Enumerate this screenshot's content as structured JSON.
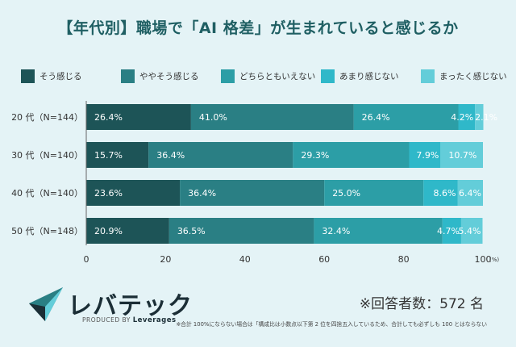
{
  "title": "【年代別】職場で「AI 格差」が生まれていると感じるか",
  "chart_data": {
    "type": "bar",
    "orientation": "horizontal",
    "stacked": true,
    "categories": [
      "20 代（N=144）",
      "30 代（N=140）",
      "40 代（N=140）",
      "50 代（N=148）"
    ],
    "series": [
      {
        "name": "そう感じる",
        "color": "#1d5457",
        "values": [
          26.4,
          15.7,
          23.6,
          20.9
        ]
      },
      {
        "name": "ややそう感じる",
        "color": "#2a7f84",
        "values": [
          41.0,
          36.4,
          36.4,
          36.5
        ]
      },
      {
        "name": "どちらともいえない",
        "color": "#2c9ea6",
        "values": [
          26.4,
          29.3,
          25.0,
          32.4
        ]
      },
      {
        "name": "あまり感じない",
        "color": "#2fb8c9",
        "values": [
          4.2,
          7.9,
          8.6,
          4.7
        ]
      },
      {
        "name": "まったく感じない",
        "color": "#63cdd9",
        "values": [
          2.1,
          10.7,
          6.4,
          5.4
        ]
      }
    ],
    "data_labels": [
      [
        "26.4%",
        "41.0%",
        "26.4%",
        "4.2%",
        "2.1%"
      ],
      [
        "15.7%",
        "36.4%",
        "29.3%",
        "7.9%",
        "10.7%"
      ],
      [
        "23.6%",
        "36.4%",
        "25.0%",
        "8.6%",
        "6.4%"
      ],
      [
        "20.9%",
        "36.5%",
        "32.4%",
        "4.7%",
        "5.4%"
      ]
    ],
    "xlim": [
      0,
      100
    ],
    "xticks": [
      "0",
      "20",
      "40",
      "60",
      "80",
      "100"
    ],
    "xunit": "(%)",
    "legend_position": "top"
  },
  "brand": {
    "name": "レバテック",
    "produced_by": "PRODUCED BY",
    "company": "Leverages"
  },
  "respondents": "※回答者数：572 名",
  "footnote": "※合計 100%にならない場合は「構成比は小数点以下第 2 位を四捨五入しているため、合計しても必ずしも 100 とはならない"
}
